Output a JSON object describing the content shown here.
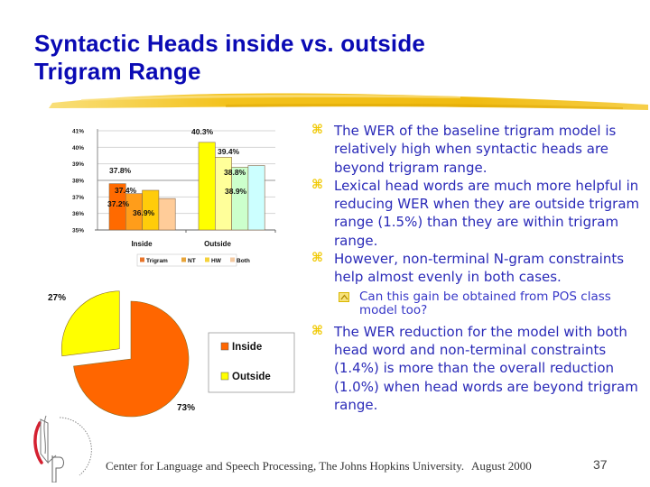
{
  "slide": {
    "title_line1": "Syntactic Heads inside vs. outside",
    "title_line2": "Trigram Range",
    "accent_colors": {
      "title": "#0a0ab4",
      "body_text": "#2a2ab8",
      "bullet_glyph": "#f0c800",
      "brush_stroke": "#f2c11a"
    }
  },
  "bullets": [
    {
      "icon": "command-key-bullet-icon",
      "text": "The WER of the baseline trigram model is relatively high when syntactic heads are beyond trigram range."
    },
    {
      "icon": "command-key-bullet-icon",
      "text": "Lexical head words are much more helpful in reducing WER when they are outside trigram range (1.5%) than they are within trigram range."
    },
    {
      "icon": "command-key-bullet-icon",
      "text": "However, non-terminal N-gram constraints help almost evenly in both cases."
    },
    {
      "icon": "chevron-box-subbullet-icon",
      "text": "Can this gain be obtained from POS class model too?",
      "level": 2
    },
    {
      "icon": "command-key-bullet-icon",
      "text": "The WER reduction for the model with both head word and non-terminal constraints (1.4%) is more than the overall reduction (1.0%) when head words are beyond trigram range."
    }
  ],
  "footer": {
    "organization": "Center for Language and Speech Processing, The Johns Hopkins University.",
    "date": "August 2000",
    "page_number": "37"
  },
  "chart_data": [
    {
      "type": "bar",
      "title": "",
      "xlabel": "",
      "ylabel": "",
      "categories": [
        "Inside",
        "Outside"
      ],
      "series": [
        {
          "name": "Trigram",
          "values": [
            37.8,
            40.3
          ],
          "colors": [
            "#ff6a00",
            "#ffff00"
          ]
        },
        {
          "name": "NT",
          "values": [
            37.2,
            39.4
          ],
          "colors": [
            "#ff9d1a",
            "#ffff9a"
          ]
        },
        {
          "name": "HW",
          "values": [
            37.4,
            38.8
          ],
          "colors": [
            "#ffcc0a",
            "#ccffcc"
          ]
        },
        {
          "name": "Both",
          "values": [
            36.9,
            38.9
          ],
          "colors": [
            "#ffcc99",
            "#ccffff"
          ]
        }
      ],
      "data_labels": {
        "Inside": [
          "37.8%",
          "37.2%",
          "37.4%",
          "36.9%"
        ],
        "Outside": [
          "40.3%",
          "39.4%",
          "38.8%",
          "38.9%"
        ]
      },
      "yticks": [
        "41%",
        "40%",
        "39%",
        "38%",
        "37%",
        "36%",
        "35%"
      ],
      "ylim": [
        35,
        41
      ],
      "grid": true,
      "legend": {
        "position": "bottom",
        "entries": [
          {
            "label": "Trigram",
            "color": "#e8752a"
          },
          {
            "label": "NT",
            "color": "#e8a53a"
          },
          {
            "label": "HW",
            "color": "#f5d23a"
          },
          {
            "label": "Both",
            "color": "#f3c9a0"
          }
        ]
      }
    },
    {
      "type": "pie",
      "title": "",
      "slices": [
        {
          "label": "Inside",
          "value": 73,
          "display": "73%",
          "color": "#ff6600"
        },
        {
          "label": "Outside",
          "value": 27,
          "display": "27%",
          "color": "#ffff00",
          "exploded": true
        }
      ],
      "legend": {
        "position": "right",
        "entries": [
          {
            "label": "Inside",
            "color": "#ff6600"
          },
          {
            "label": "Outside",
            "color": "#ffff00"
          }
        ]
      }
    }
  ]
}
